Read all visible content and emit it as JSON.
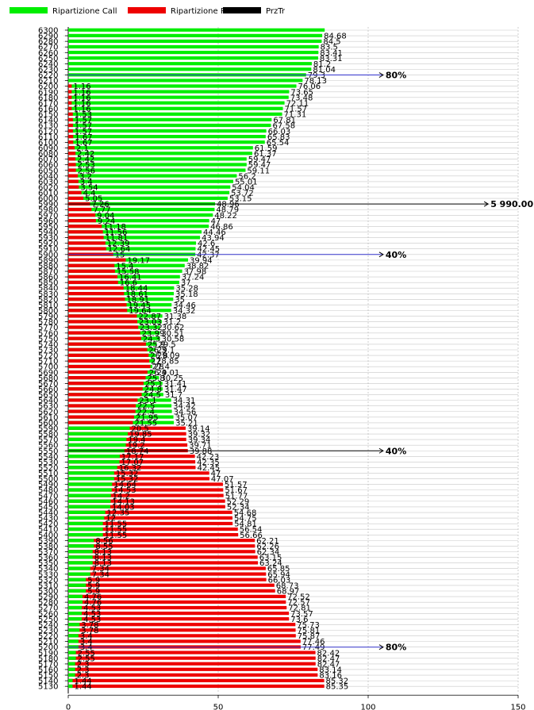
{
  "chart_data": {
    "type": "bar",
    "orientation": "horizontal",
    "series": [
      {
        "name": "Ripartizione Call",
        "color": "#00ee00"
      },
      {
        "name": "Ripartizione Put",
        "color": "#ee0000"
      },
      {
        "name": "PrzTr",
        "color": "#000000"
      }
    ],
    "legend_position": "top-left",
    "x_ticks": [
      "0",
      "50",
      "100",
      "150"
    ],
    "xlim": [
      0,
      150
    ],
    "grid": true,
    "rows": [
      {
        "strike": "6300",
        "call": 85.5,
        "put": null,
        "call_label": "",
        "put_label": ""
      },
      {
        "strike": "6290",
        "call": 84.68,
        "put": null,
        "call_label": "84.68",
        "put_label": ""
      },
      {
        "strike": "6280",
        "call": 84.5,
        "put": null,
        "call_label": "84.5",
        "put_label": ""
      },
      {
        "strike": "6270",
        "call": 83.5,
        "put": null,
        "call_label": "83.5",
        "put_label": ""
      },
      {
        "strike": "6260",
        "call": 83.41,
        "put": null,
        "call_label": "83.41",
        "put_label": ""
      },
      {
        "strike": "6250",
        "call": 83.31,
        "put": null,
        "call_label": "83.31",
        "put_label": ""
      },
      {
        "strike": "6240",
        "call": 81.2,
        "put": null,
        "call_label": "81.2",
        "put_label": ""
      },
      {
        "strike": "6230",
        "call": 81.04,
        "put": null,
        "call_label": "81.04",
        "put_label": ""
      },
      {
        "strike": "6220",
        "call": 79.3,
        "put": null,
        "call_label": "79.3",
        "put_label": ""
      },
      {
        "strike": "6210",
        "call": 78.13,
        "put": null,
        "call_label": "78.13",
        "put_label": ""
      },
      {
        "strike": "6200",
        "call": 76.06,
        "put": 1.16,
        "call_label": "76.06",
        "put_label": "1.16"
      },
      {
        "strike": "6190",
        "call": 73.65,
        "put": 1.16,
        "call_label": "73.65",
        "put_label": "1.16"
      },
      {
        "strike": "6180",
        "call": 73.48,
        "put": 1.16,
        "call_label": "73.48",
        "put_label": "1.16"
      },
      {
        "strike": "6170",
        "call": 72.11,
        "put": 1.16,
        "call_label": "72.11",
        "put_label": "1.16"
      },
      {
        "strike": "6160",
        "call": 71.57,
        "put": 1.16,
        "call_label": "71.57",
        "put_label": "1.16"
      },
      {
        "strike": "6150",
        "call": 71.31,
        "put": 1.53,
        "call_label": "71.31",
        "put_label": "1.53"
      },
      {
        "strike": "6140",
        "call": 67.81,
        "put": 1.57,
        "call_label": "67.81",
        "put_label": "1.57"
      },
      {
        "strike": "6130",
        "call": 67.58,
        "put": 1.57,
        "call_label": "67.58",
        "put_label": "1.57"
      },
      {
        "strike": "6120",
        "call": 66.03,
        "put": 1.57,
        "call_label": "66.03",
        "put_label": "1.57"
      },
      {
        "strike": "6110",
        "call": 65.83,
        "put": 1.67,
        "call_label": "65.83",
        "put_label": "1.67"
      },
      {
        "strike": "6100",
        "call": 65.54,
        "put": 1.67,
        "call_label": "65.54",
        "put_label": "1.67"
      },
      {
        "strike": "6090",
        "call": 61.59,
        "put": 2.1,
        "call_label": "61.59",
        "put_label": "2.1"
      },
      {
        "strike": "6080",
        "call": 61.37,
        "put": 2.42,
        "call_label": "61.37",
        "put_label": "2.42"
      },
      {
        "strike": "6070",
        "call": 59.47,
        "put": 2.42,
        "call_label": "59.47",
        "put_label": "2.42"
      },
      {
        "strike": "6060",
        "call": 59.47,
        "put": 2.53,
        "call_label": "59.47",
        "put_label": "2.53"
      },
      {
        "strike": "6050",
        "call": 59.11,
        "put": 2.56,
        "call_label": "59.11",
        "put_label": "2.56"
      },
      {
        "strike": "6040",
        "call": 56.2,
        "put": 3.2,
        "call_label": "56.2",
        "put_label": "3.2"
      },
      {
        "strike": "6030",
        "call": 55.01,
        "put": 3.4,
        "call_label": "55.01",
        "put_label": "3.4"
      },
      {
        "strike": "6020",
        "call": 54.04,
        "put": 3.54,
        "call_label": "54.04",
        "put_label": "3.54"
      },
      {
        "strike": "6010",
        "call": 53.72,
        "put": 4.4,
        "call_label": "53.72",
        "put_label": "4.4"
      },
      {
        "strike": "6000",
        "call": 53.15,
        "put": 5.05,
        "call_label": "53.15",
        "put_label": "5.05"
      },
      {
        "strike": "5990",
        "call": 48.96,
        "put": 7.26,
        "call_label": "48.96",
        "put_label": "7.26"
      },
      {
        "strike": "5980",
        "call": 48.79,
        "put": 7.77,
        "call_label": "48.79",
        "put_label": "7.77"
      },
      {
        "strike": "5970",
        "call": 48.22,
        "put": 9.04,
        "call_label": "48.22",
        "put_label": "9.04"
      },
      {
        "strike": "5960",
        "call": 47.0,
        "put": 9.24,
        "call_label": "47",
        "put_label": "9.24"
      },
      {
        "strike": "5950",
        "call": 46.86,
        "put": 11.18,
        "call_label": "46.86",
        "put_label": "11.18"
      },
      {
        "strike": "5940",
        "call": 44.46,
        "put": 11.56,
        "call_label": "44.46",
        "put_label": "11.56"
      },
      {
        "strike": "5930",
        "call": 43.94,
        "put": 11.81,
        "call_label": "43.94",
        "put_label": "11.81"
      },
      {
        "strike": "5920",
        "call": 42.6,
        "put": 12.39,
        "call_label": "42.6",
        "put_label": "12.39"
      },
      {
        "strike": "5910",
        "call": 42.45,
        "put": 12.64,
        "call_label": "42.45",
        "put_label": "12.64"
      },
      {
        "strike": "5900",
        "call": 42.37,
        "put": 15.0,
        "call_label": "42.37",
        "put_label": "15"
      },
      {
        "strike": "5890",
        "call": 39.94,
        "put": 19.17,
        "call_label": "39.94",
        "put_label": "19.17"
      },
      {
        "strike": "5880",
        "call": 38.82,
        "put": 15.4,
        "call_label": "38.82",
        "put_label": "15.4"
      },
      {
        "strike": "5870",
        "call": 37.98,
        "put": 15.58,
        "call_label": "37.98",
        "put_label": "15.58"
      },
      {
        "strike": "5860",
        "call": 37.24,
        "put": 16.41,
        "call_label": "37.24",
        "put_label": "16.41"
      },
      {
        "strike": "5850",
        "call": 37.0,
        "put": 16.6,
        "call_label": "37",
        "put_label": "16.6"
      },
      {
        "strike": "5840",
        "call": 35.28,
        "put": 18.44,
        "call_label": "35.28",
        "put_label": "18.44"
      },
      {
        "strike": "5830",
        "call": 35.18,
        "put": 18.61,
        "call_label": "35.18",
        "put_label": "18.61"
      },
      {
        "strike": "5820",
        "call": 35.0,
        "put": 18.91,
        "call_label": "35",
        "put_label": "18.91"
      },
      {
        "strike": "5810",
        "call": 34.46,
        "put": 19.45,
        "call_label": "34.46",
        "put_label": "19.45"
      },
      {
        "strike": "5800",
        "call": 34.32,
        "put": 19.64,
        "call_label": "34.32",
        "put_label": "19.64"
      },
      {
        "strike": "5790",
        "call": 31.38,
        "put": 22.87,
        "call_label": "31.38",
        "put_label": "22.87"
      },
      {
        "strike": "5780",
        "call": 31.2,
        "put": 23.03,
        "call_label": "31.2",
        "put_label": "23.03"
      },
      {
        "strike": "5770",
        "call": 30.62,
        "put": 23.32,
        "call_label": "30.62",
        "put_label": "23.32"
      },
      {
        "strike": "5760",
        "call": 30.51,
        "put": 23.99,
        "call_label": "30.51",
        "put_label": "23.99"
      },
      {
        "strike": "5750",
        "call": 30.58,
        "put": 24.3,
        "call_label": "30.58",
        "put_label": "24.3"
      },
      {
        "strike": "5740",
        "call": 29.5,
        "put": 25.9,
        "call_label": "29.5",
        "put_label": "25.9"
      },
      {
        "strike": "5730",
        "call": 29.1,
        "put": 26.3,
        "call_label": "29.1",
        "put_label": "26.3"
      },
      {
        "strike": "5720",
        "call": 29.09,
        "put": 26.8,
        "call_label": "29.09",
        "put_label": "26.8"
      },
      {
        "strike": "5710",
        "call": 28.85,
        "put": 27.0,
        "call_label": "28.85",
        "put_label": "27"
      },
      {
        "strike": "5700",
        "call": 28.0,
        "put": 27.4,
        "call_label": "28",
        "put_label": "27.4"
      },
      {
        "strike": "5690",
        "call": 29.01,
        "put": 26.4,
        "call_label": "29.01",
        "put_label": "26.4"
      },
      {
        "strike": "5680",
        "call": 30.25,
        "put": 25.8,
        "call_label": "30.25",
        "put_label": "25.8"
      },
      {
        "strike": "5670",
        "call": 31.41,
        "put": 25.1,
        "call_label": "31.41",
        "put_label": "25.1"
      },
      {
        "strike": "5660",
        "call": 31.47,
        "put": 24.8,
        "call_label": "31.47",
        "put_label": "24.8"
      },
      {
        "strike": "5650",
        "call": 31.7,
        "put": 24.5,
        "call_label": "31.7",
        "put_label": "24.5"
      },
      {
        "strike": "5640",
        "call": 34.31,
        "put": 23.1,
        "call_label": "34.31",
        "put_label": "23.1"
      },
      {
        "strike": "5630",
        "call": 34.42,
        "put": 22.5,
        "call_label": "34.42",
        "put_label": "22.5"
      },
      {
        "strike": "5620",
        "call": 34.56,
        "put": 22.4,
        "call_label": "34.56",
        "put_label": "22.4"
      },
      {
        "strike": "5610",
        "call": 35.07,
        "put": 21.95,
        "call_label": "35.07",
        "put_label": "21.95"
      },
      {
        "strike": "5600",
        "call": 35.21,
        "put": 21.55,
        "call_label": "35.21",
        "put_label": "21.55"
      },
      {
        "strike": "5590",
        "call": 20.5,
        "put": 39.14,
        "call_label": "20.5",
        "put_label": "39.14"
      },
      {
        "strike": "5580",
        "call": 19.85,
        "put": 39.32,
        "call_label": "19.85",
        "put_label": "39.32"
      },
      {
        "strike": "5570",
        "call": 19.4,
        "put": 39.34,
        "call_label": "19.4",
        "put_label": "39.34"
      },
      {
        "strike": "5560",
        "call": 19.2,
        "put": 39.71,
        "call_label": "19.2",
        "put_label": "39.71"
      },
      {
        "strike": "5550",
        "call": 18.74,
        "put": 39.88,
        "call_label": "18.74",
        "put_label": "39.88"
      },
      {
        "strike": "5540",
        "call": 17.17,
        "put": 42.23,
        "call_label": "17.17",
        "put_label": "42.23"
      },
      {
        "strike": "5530",
        "call": 17.07,
        "put": 42.35,
        "call_label": "17.07",
        "put_label": "42.35"
      },
      {
        "strike": "5520",
        "call": 16.32,
        "put": 42.45,
        "call_label": "16.32",
        "put_label": "42.45"
      },
      {
        "strike": "5510",
        "call": 15.32,
        "put": 47.0,
        "call_label": "15.32",
        "put_label": "47"
      },
      {
        "strike": "5500",
        "call": 15.32,
        "put": 47.07,
        "call_label": "15.32",
        "put_label": "47.07"
      },
      {
        "strike": "5490",
        "call": 14.64,
        "put": 51.57,
        "call_label": "14.64",
        "put_label": "51.57"
      },
      {
        "strike": "5480",
        "call": 14.53,
        "put": 51.67,
        "call_label": "14.53",
        "put_label": "51.67"
      },
      {
        "strike": "5470",
        "call": 14.2,
        "put": 51.77,
        "call_label": "14.2",
        "put_label": "51.77"
      },
      {
        "strike": "5460",
        "call": 14.13,
        "put": 52.29,
        "call_label": "14.13",
        "put_label": "52.29"
      },
      {
        "strike": "5450",
        "call": 14.03,
        "put": 52.34,
        "call_label": "14.03",
        "put_label": "52.34"
      },
      {
        "strike": "5440",
        "call": 12.35,
        "put": 54.68,
        "call_label": "12.35",
        "put_label": "54.68"
      },
      {
        "strike": "5430",
        "call": 12.0,
        "put": 54.75,
        "call_label": "12",
        "put_label": "54.75"
      },
      {
        "strike": "5420",
        "call": 11.55,
        "put": 54.81,
        "call_label": "11.55",
        "put_label": "54.81"
      },
      {
        "strike": "5410",
        "call": 11.55,
        "put": 56.54,
        "call_label": "11.55",
        "put_label": "56.54"
      },
      {
        "strike": "5400",
        "call": 11.55,
        "put": 56.66,
        "call_label": "11.55",
        "put_label": "56.66"
      },
      {
        "strike": "5390",
        "call": 8.56,
        "put": 62.21,
        "call_label": "8.56",
        "put_label": "62.21"
      },
      {
        "strike": "5380",
        "call": 8.55,
        "put": 62.26,
        "call_label": "8.55",
        "put_label": "62.26"
      },
      {
        "strike": "5370",
        "call": 8.13,
        "put": 62.34,
        "call_label": "8.13",
        "put_label": "62.34"
      },
      {
        "strike": "5360",
        "call": 8.13,
        "put": 63.15,
        "call_label": "8.13",
        "put_label": "63.15"
      },
      {
        "strike": "5350",
        "call": 8.13,
        "put": 63.24,
        "call_label": "8.13",
        "put_label": "63.24"
      },
      {
        "strike": "5340",
        "call": 7.34,
        "put": 65.85,
        "call_label": "7.34",
        "put_label": "65.85"
      },
      {
        "strike": "5330",
        "call": 7.34,
        "put": 65.94,
        "call_label": "7.34",
        "put_label": "65.94"
      },
      {
        "strike": "5320",
        "call": 5.9,
        "put": 66.03,
        "call_label": "5.9",
        "put_label": "66.03"
      },
      {
        "strike": "5310",
        "call": 5.9,
        "put": 68.73,
        "call_label": "5.9",
        "put_label": "68.73"
      },
      {
        "strike": "5300",
        "call": 5.9,
        "put": 68.97,
        "call_label": "5.9",
        "put_label": "68.97"
      },
      {
        "strike": "5290",
        "call": 4.76,
        "put": 72.52,
        "call_label": "4.76",
        "put_label": "72.52"
      },
      {
        "strike": "5280",
        "call": 4.76,
        "put": 72.57,
        "call_label": "4.76",
        "put_label": "72.57"
      },
      {
        "strike": "5270",
        "call": 4.53,
        "put": 72.81,
        "call_label": "4.53",
        "put_label": "72.81"
      },
      {
        "strike": "5260",
        "call": 4.53,
        "put": 73.57,
        "call_label": "4.53",
        "put_label": "73.57"
      },
      {
        "strike": "5250",
        "call": 4.53,
        "put": 73.6,
        "call_label": "4.53",
        "put_label": "73.6"
      },
      {
        "strike": "5240",
        "call": 3.78,
        "put": 75.73,
        "call_label": "3.78",
        "put_label": "75.73"
      },
      {
        "strike": "5230",
        "call": 3.78,
        "put": 75.81,
        "call_label": "3.78",
        "put_label": "75.81"
      },
      {
        "strike": "5220",
        "call": 3.4,
        "put": 75.87,
        "call_label": "3.4",
        "put_label": "75.87"
      },
      {
        "strike": "5210",
        "call": 3.4,
        "put": 77.46,
        "call_label": "3.4",
        "put_label": "77.46"
      },
      {
        "strike": "5200",
        "call": 3.4,
        "put": 77.49,
        "call_label": "3.4",
        "put_label": "77.49"
      },
      {
        "strike": "5190",
        "call": 2.55,
        "put": 82.42,
        "call_label": "2.55",
        "put_label": "82.42"
      },
      {
        "strike": "5180",
        "call": 2.55,
        "put": 82.47,
        "call_label": "2.55",
        "put_label": "82.47"
      },
      {
        "strike": "5170",
        "call": 2.3,
        "put": 82.47,
        "call_label": "2.3",
        "put_label": "82.47"
      },
      {
        "strike": "5160",
        "call": 2.3,
        "put": 83.14,
        "call_label": "2.3",
        "put_label": "83.14"
      },
      {
        "strike": "5150",
        "call": 2.3,
        "put": 83.16,
        "call_label": "2.3",
        "put_label": "83.16"
      },
      {
        "strike": "5140",
        "call": 1.44,
        "put": 85.32,
        "call_label": "1.44",
        "put_label": "85.32"
      },
      {
        "strike": "5130",
        "call": 1.44,
        "put": 85.35,
        "call_label": "1.44",
        "put_label": "85.35"
      }
    ],
    "annotations": [
      {
        "text": "80%",
        "at_strike": "6220",
        "x_end": 105,
        "color": "#3333cc"
      },
      {
        "text": "5 990.00",
        "at_strike": "5990",
        "x_end": 140,
        "color": "#000000"
      },
      {
        "text": "40%",
        "at_strike": "5900",
        "x_end": 105,
        "color": "#3333cc"
      },
      {
        "text": "40%",
        "at_strike": "5550",
        "x_end": 105,
        "color": "#000000"
      },
      {
        "text": "80%",
        "at_strike": "5200",
        "x_end": 105,
        "color": "#3333cc"
      }
    ]
  }
}
